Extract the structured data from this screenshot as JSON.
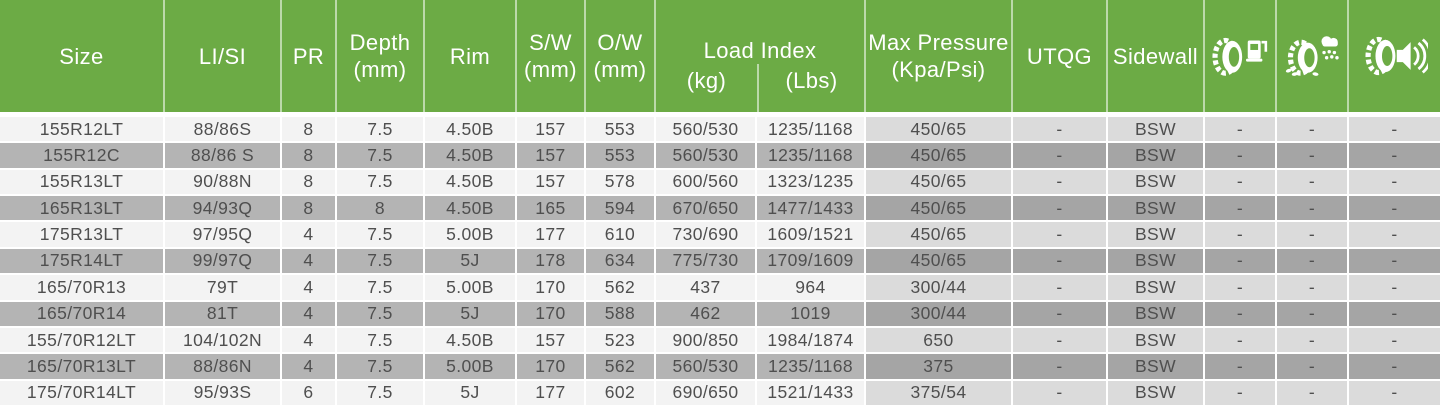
{
  "colors": {
    "header_green": "#6cab45",
    "header_text": "#ffffff",
    "row_light": "#f3f3f3",
    "row_dark": "#b4b4b4",
    "row_light_tint": "#dbdbdb",
    "row_dark_tint": "#a5a5a5",
    "body_text": "#4f4f4f"
  },
  "header": {
    "size": "Size",
    "lisi": "LI/SI",
    "pr": "PR",
    "depth": [
      "Depth",
      "(mm)"
    ],
    "rim": "Rim",
    "sw": [
      "S/W",
      "(mm)"
    ],
    "ow": [
      "O/W",
      "(mm)"
    ],
    "load_index": {
      "title": "Load Index",
      "kg": "(kg)",
      "lbs": "(Lbs)"
    },
    "max_pressure": [
      "Max Pressure",
      "(Kpa/Psi)"
    ],
    "utqg": "UTQG",
    "sidewall": "Sidewall",
    "icons": [
      "fuel-efficiency-icon",
      "wet-grip-icon",
      "noise-icon"
    ]
  },
  "rows": [
    [
      "155R12LT",
      "88/86S",
      "8",
      "7.5",
      "4.50B",
      "157",
      "553",
      "560/530",
      "1235/1168",
      "450/65",
      "-",
      "BSW",
      "-",
      "-",
      "-"
    ],
    [
      "155R12C",
      "88/86 S",
      "8",
      "7.5",
      "4.50B",
      "157",
      "553",
      "560/530",
      "1235/1168",
      "450/65",
      "-",
      "BSW",
      "-",
      "-",
      "-"
    ],
    [
      "155R13LT",
      "90/88N",
      "8",
      "7.5",
      "4.50B",
      "157",
      "578",
      "600/560",
      "1323/1235",
      "450/65",
      "-",
      "BSW",
      "-",
      "-",
      "-"
    ],
    [
      "165R13LT",
      "94/93Q",
      "8",
      "8",
      "4.50B",
      "165",
      "594",
      "670/650",
      "1477/1433",
      "450/65",
      "-",
      "BSW",
      "-",
      "-",
      "-"
    ],
    [
      "175R13LT",
      "97/95Q",
      "4",
      "7.5",
      "5.00B",
      "177",
      "610",
      "730/690",
      "1609/1521",
      "450/65",
      "-",
      "BSW",
      "-",
      "-",
      "-"
    ],
    [
      "175R14LT",
      "99/97Q",
      "4",
      "7.5",
      "5J",
      "178",
      "634",
      "775/730",
      "1709/1609",
      "450/65",
      "-",
      "BSW",
      "-",
      "-",
      "-"
    ],
    [
      "165/70R13",
      "79T",
      "4",
      "7.5",
      "5.00B",
      "170",
      "562",
      "437",
      "964",
      "300/44",
      "-",
      "BSW",
      "-",
      "-",
      "-"
    ],
    [
      "165/70R14",
      "81T",
      "4",
      "7.5",
      "5J",
      "170",
      "588",
      "462",
      "1019",
      "300/44",
      "-",
      "BSW",
      "-",
      "-",
      "-"
    ],
    [
      "155/70R12LT",
      "104/102N",
      "4",
      "7.5",
      "4.50B",
      "157",
      "523",
      "900/850",
      "1984/1874",
      "650",
      "-",
      "BSW",
      "-",
      "-",
      "-"
    ],
    [
      "165/70R13LT",
      "88/86N",
      "4",
      "7.5",
      "5.00B",
      "170",
      "562",
      "560/530",
      "1235/1168",
      "375",
      "-",
      "BSW",
      "-",
      "-",
      "-"
    ],
    [
      "175/70R14LT",
      "95/93S",
      "6",
      "7.5",
      "5J",
      "177",
      "602",
      "690/650",
      "1521/1433",
      "375/54",
      "-",
      "BSW",
      "-",
      "-",
      "-"
    ]
  ]
}
